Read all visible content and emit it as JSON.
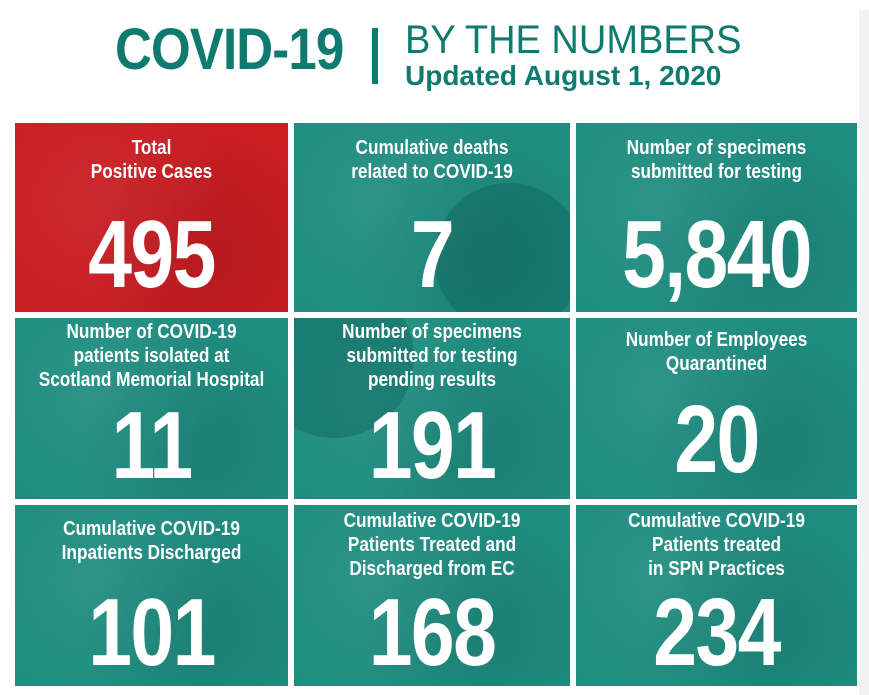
{
  "header": {
    "title": "COVID-19",
    "subtitle": "BY THE NUMBERS",
    "updated": "Updated August 1, 2020"
  },
  "colors": {
    "teal": "#1f8d80",
    "heading_teal": "#0f7a6e",
    "red": "#c91d22"
  },
  "tiles": [
    {
      "label": "Total\nPositive Cases",
      "value": "495"
    },
    {
      "label": "Cumulative deaths\nrelated to COVID-19",
      "value": "7"
    },
    {
      "label": "Number of specimens\nsubmitted for testing",
      "value": "5,840"
    },
    {
      "label": "Number of COVID-19\npatients isolated at\nScotland Memorial Hospital",
      "value": "11"
    },
    {
      "label": "Number of specimens\nsubmitted for testing\npending results",
      "value": "191"
    },
    {
      "label": "Number of Employees\nQuarantined",
      "value": "20"
    },
    {
      "label": "Cumulative COVID-19\nInpatients Discharged",
      "value": "101"
    },
    {
      "label": "Cumulative COVID-19\nPatients Treated and\nDischarged from EC",
      "value": "168"
    },
    {
      "label": "Cumulative COVID-19\nPatients treated\nin SPN Practices",
      "value": "234"
    }
  ]
}
